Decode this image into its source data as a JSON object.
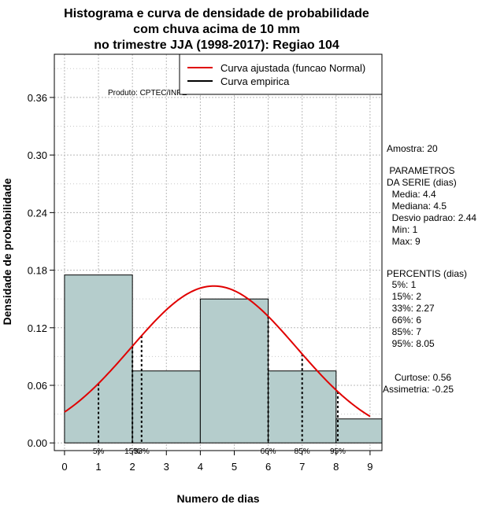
{
  "chart_data": {
    "type": "bar",
    "title": [
      "Histograma e curva de densidade de probabilidade",
      "com chuva acima de 10 mm",
      "no trimestre JJA (1998-2017): Regiao 104"
    ],
    "xlabel": "Numero de dias",
    "ylabel": "Densidade de probabilidade",
    "xlim": [
      -0.3,
      9.35
    ],
    "ylim": [
      -0.008,
      0.405
    ],
    "x_ticks": [
      0,
      1,
      2,
      3,
      4,
      5,
      6,
      7,
      8,
      9
    ],
    "y_ticks": [
      0.0,
      0.06,
      0.12,
      0.18,
      0.24,
      0.3,
      0.36
    ],
    "y_tick_labels": [
      "0.00",
      "0.06",
      "0.12",
      "0.18",
      "0.24",
      "0.30",
      "0.36"
    ],
    "bins": [
      {
        "x0": 0,
        "x1": 2,
        "density": 0.175
      },
      {
        "x0": 2,
        "x1": 4,
        "density": 0.075
      },
      {
        "x0": 4,
        "x1": 6,
        "density": 0.15
      },
      {
        "x0": 6,
        "x1": 8,
        "density": 0.075
      },
      {
        "x0": 8,
        "x1": 9.35,
        "density": 0.025
      }
    ],
    "bar_color": "#b5cdcc",
    "curve": {
      "name": "Curva ajustada (funcao Normal)",
      "distribution": "normal",
      "mean": 4.4,
      "sd": 2.44,
      "x_range": [
        0,
        9
      ],
      "color": "#e00000"
    },
    "empirical_curve_name": "Curva empirica",
    "percentiles": [
      {
        "label": "5%",
        "x": 1
      },
      {
        "label": "15%",
        "x": 2
      },
      {
        "label": "33%",
        "x": 2.27
      },
      {
        "label": "66%",
        "x": 6
      },
      {
        "label": "85%",
        "x": 7
      },
      {
        "label": "95%",
        "x": 8.05
      }
    ],
    "credit": "Produto: CPTEC/INPE",
    "stats": {
      "sample": "Amostra: 20",
      "params_title": [
        " PARAMETROS",
        "DA SERIE (dias)"
      ],
      "params": [
        "  Media: 4.4",
        "  Mediana: 4.5",
        "  Desvio padrao: 2.44",
        "  Min: 1",
        "  Max: 9"
      ],
      "percentis_title": "PERCENTIS (dias)",
      "percentis": [
        "  5%: 1",
        "  15%: 2",
        "  33%: 2.27",
        "  66%: 6",
        "  85%: 7",
        "  95%: 8.05"
      ],
      "curtose": "Curtose: 0.56",
      "assimetria": "Assimetria: -0.25"
    }
  }
}
